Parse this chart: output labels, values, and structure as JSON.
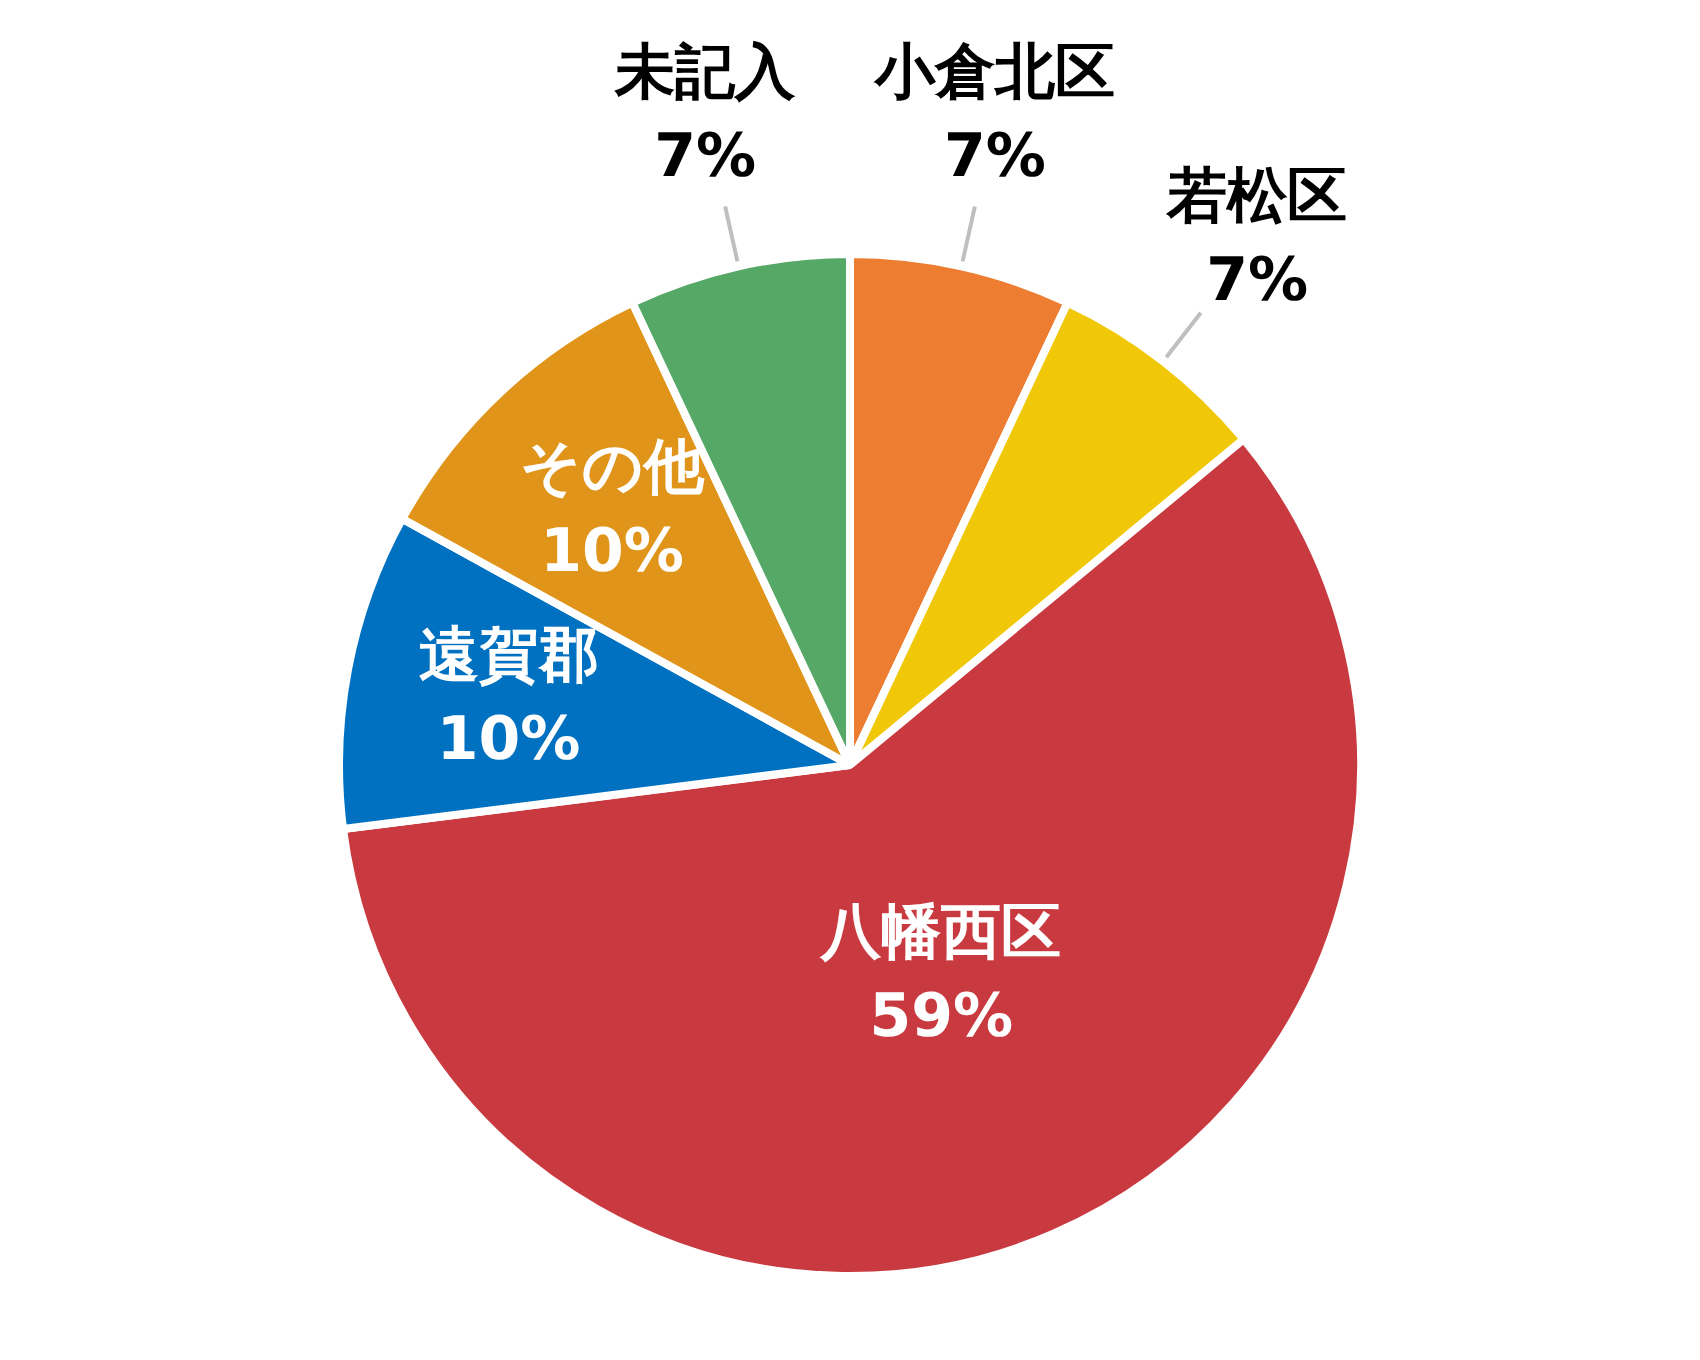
{
  "chart_data": {
    "type": "pie",
    "categories": [
      "小倉北区",
      "若松区",
      "八幡西区",
      "遠賀郡",
      "その他",
      "未記入"
    ],
    "values": [
      7,
      7,
      59,
      10,
      10,
      7
    ],
    "value_labels": [
      "7%",
      "7%",
      "59%",
      "10%",
      "10%",
      "7%"
    ],
    "colors": [
      "#ed7d31",
      "#f0c808",
      "#c93a40",
      "#0070c0",
      "#e0951a",
      "#56a867"
    ],
    "legend": false
  }
}
